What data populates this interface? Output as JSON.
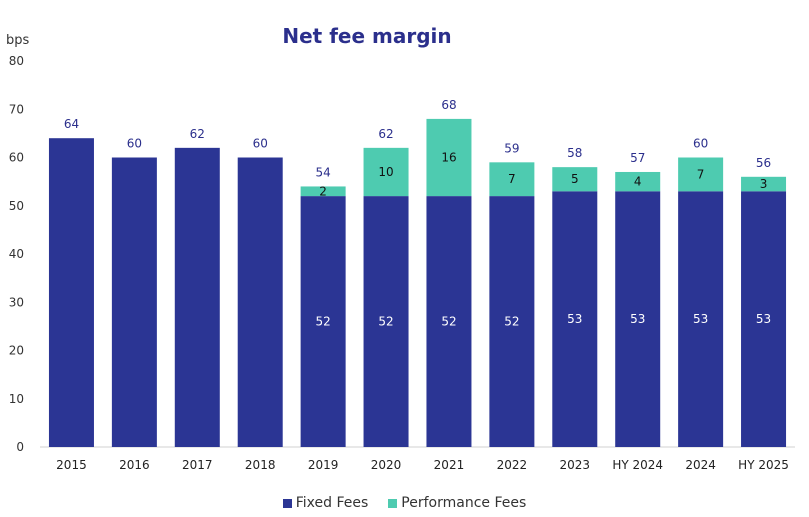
{
  "chart_data": {
    "type": "bar",
    "stacked": true,
    "title": "Net fee margin",
    "ylabel": "bps",
    "xlabel": "",
    "ylim": [
      0,
      80
    ],
    "yticks": [
      0,
      10,
      20,
      30,
      40,
      50,
      60,
      70,
      80
    ],
    "categories": [
      "2015",
      "2016",
      "2017",
      "2018",
      "2019",
      "2020",
      "2021",
      "2022",
      "2023",
      "HY 2024",
      "2024",
      "HY 2025"
    ],
    "series": [
      {
        "name": "Fixed Fees",
        "color": "#2b3594",
        "values": [
          64,
          60,
          62,
          60,
          52,
          52,
          52,
          52,
          53,
          53,
          53,
          53
        ],
        "labels": [
          "",
          "",
          "",
          "",
          "52",
          "52",
          "52",
          "52",
          "53",
          "53",
          "53",
          "53"
        ]
      },
      {
        "name": "Performance Fees",
        "color": "#4ecbb0",
        "values": [
          0,
          0,
          0,
          0,
          2,
          10,
          16,
          7,
          5,
          4,
          7,
          3
        ],
        "labels": [
          "",
          "",
          "",
          "",
          "2",
          "10",
          "16",
          "7",
          "5",
          "4",
          "7",
          "3"
        ]
      }
    ],
    "totals": [
      "64",
      "60",
      "62",
      "60",
      "54",
      "62",
      "68",
      "59",
      "58",
      "57",
      "60",
      "56"
    ],
    "legend_position": "bottom"
  }
}
